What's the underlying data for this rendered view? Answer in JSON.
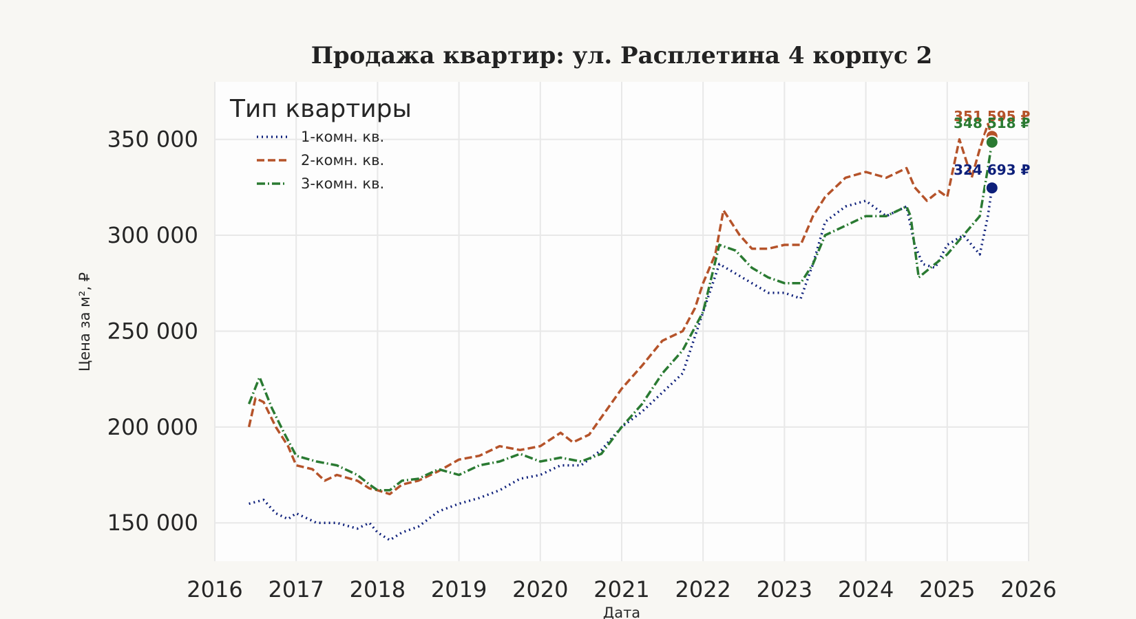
{
  "chart_data": {
    "type": "line",
    "title": "Продажа квартир: ул. Расплетина 4 корпус 2",
    "xlabel": "Дата",
    "ylabel": "Цена за м², ₽",
    "xlim": [
      2016.0,
      2026.0
    ],
    "ylim": [
      130000,
      380000
    ],
    "x_ticks": [
      "2016",
      "2017",
      "2018",
      "2019",
      "2020",
      "2021",
      "2022",
      "2023",
      "2024",
      "2025",
      "2026"
    ],
    "y_ticks": [
      "150 000",
      "200 000",
      "250 000",
      "300 000",
      "350 000"
    ],
    "grid": true,
    "legend": {
      "title": "Тип квартиры",
      "position": "top-left"
    },
    "series": [
      {
        "name": "1-комн. кв.",
        "color": "#0d1f7a",
        "dash": "dotted",
        "end_label": "324 693 ₽",
        "end_value": 324693,
        "x": [
          2016.42,
          2016.6,
          2016.75,
          2016.9,
          2017.0,
          2017.25,
          2017.5,
          2017.75,
          2017.9,
          2018.0,
          2018.15,
          2018.3,
          2018.5,
          2018.75,
          2019.0,
          2019.25,
          2019.5,
          2019.75,
          2020.0,
          2020.25,
          2020.5,
          2020.75,
          2021.0,
          2021.25,
          2021.5,
          2021.75,
          2022.0,
          2022.2,
          2022.4,
          2022.6,
          2022.8,
          2023.0,
          2023.2,
          2023.35,
          2023.5,
          2023.75,
          2024.0,
          2024.25,
          2024.5,
          2024.6,
          2024.7,
          2024.85,
          2025.0,
          2025.2,
          2025.4,
          2025.5,
          2025.55
        ],
        "y": [
          160000,
          162000,
          155000,
          152000,
          155000,
          150000,
          150000,
          147000,
          150000,
          145000,
          141000,
          145000,
          148000,
          156000,
          160000,
          163000,
          167000,
          173000,
          175000,
          180000,
          180000,
          188000,
          200000,
          208000,
          218000,
          228000,
          260000,
          285000,
          280000,
          275000,
          270000,
          270000,
          267000,
          285000,
          307000,
          315000,
          318000,
          310000,
          315000,
          295000,
          285000,
          283000,
          295000,
          300000,
          290000,
          310000,
          324693
        ]
      },
      {
        "name": "2-комн. кв.",
        "color": "#b5532a",
        "dash": "dashed",
        "end_label": "351 595 ₽",
        "end_value": 351595,
        "x": [
          2016.42,
          2016.5,
          2016.6,
          2016.75,
          2016.9,
          2017.0,
          2017.2,
          2017.35,
          2017.5,
          2017.75,
          2017.9,
          2018.0,
          2018.15,
          2018.3,
          2018.5,
          2018.75,
          2019.0,
          2019.25,
          2019.5,
          2019.75,
          2020.0,
          2020.25,
          2020.4,
          2020.6,
          2020.75,
          2021.0,
          2021.25,
          2021.5,
          2021.75,
          2021.9,
          2022.0,
          2022.15,
          2022.25,
          2022.45,
          2022.6,
          2022.8,
          2023.0,
          2023.2,
          2023.35,
          2023.5,
          2023.75,
          2024.0,
          2024.25,
          2024.5,
          2024.6,
          2024.75,
          2024.9,
          2025.0,
          2025.15,
          2025.3,
          2025.4,
          2025.5,
          2025.55
        ],
        "y": [
          200000,
          215000,
          213000,
          200000,
          190000,
          180000,
          178000,
          172000,
          175000,
          172000,
          168000,
          167000,
          165000,
          170000,
          172000,
          177000,
          183000,
          185000,
          190000,
          188000,
          190000,
          197000,
          192000,
          196000,
          205000,
          220000,
          232000,
          245000,
          250000,
          262000,
          275000,
          290000,
          313000,
          300000,
          293000,
          293000,
          295000,
          295000,
          310000,
          320000,
          330000,
          333000,
          330000,
          335000,
          325000,
          318000,
          323000,
          320000,
          350000,
          330000,
          345000,
          358000,
          351595
        ]
      },
      {
        "name": "3-комн. кв.",
        "color": "#2a7a32",
        "dash": "dashdot",
        "end_label": "348 518 ₽",
        "end_value": 348518,
        "x": [
          2016.42,
          2016.55,
          2016.7,
          2016.85,
          2017.0,
          2017.25,
          2017.5,
          2017.75,
          2017.9,
          2018.0,
          2018.15,
          2018.3,
          2018.5,
          2018.75,
          2019.0,
          2019.25,
          2019.5,
          2019.75,
          2020.0,
          2020.25,
          2020.5,
          2020.75,
          2021.0,
          2021.25,
          2021.5,
          2021.75,
          2022.0,
          2022.2,
          2022.4,
          2022.6,
          2022.8,
          2023.0,
          2023.2,
          2023.35,
          2023.5,
          2023.75,
          2024.0,
          2024.25,
          2024.5,
          2024.55,
          2024.65,
          2024.85,
          2025.0,
          2025.2,
          2025.4,
          2025.5,
          2025.55
        ],
        "y": [
          212000,
          226000,
          210000,
          197000,
          185000,
          182000,
          180000,
          175000,
          170000,
          167000,
          167000,
          172000,
          173000,
          178000,
          175000,
          180000,
          182000,
          186000,
          182000,
          184000,
          182000,
          186000,
          200000,
          212000,
          228000,
          240000,
          260000,
          295000,
          292000,
          283000,
          278000,
          275000,
          275000,
          285000,
          300000,
          305000,
          310000,
          310000,
          315000,
          310000,
          278000,
          285000,
          290000,
          300000,
          310000,
          335000,
          348518
        ]
      }
    ]
  }
}
